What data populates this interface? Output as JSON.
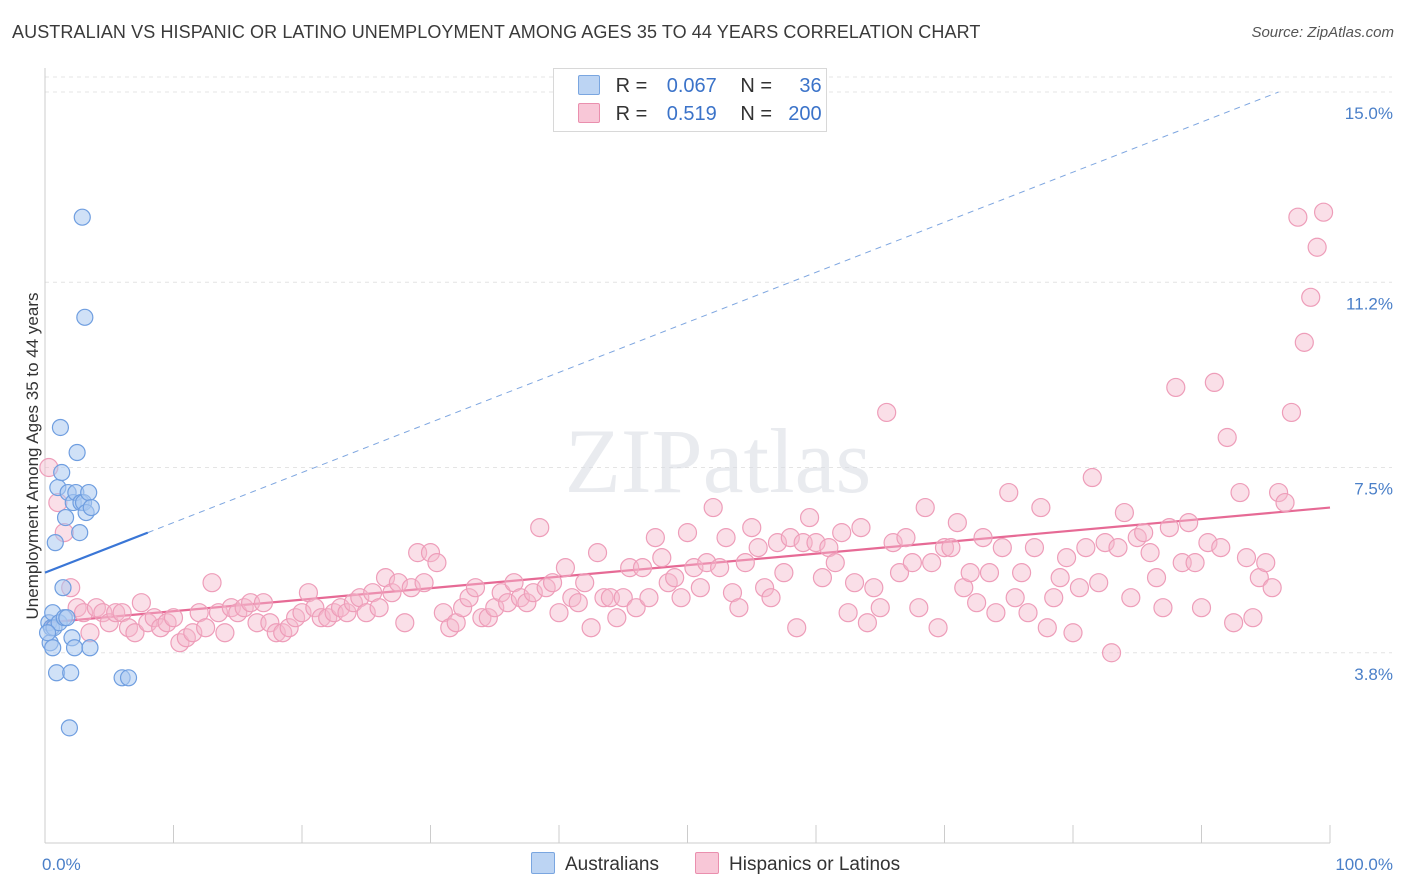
{
  "header": {
    "title": "AUSTRALIAN VS HISPANIC OR LATINO UNEMPLOYMENT AMONG AGES 35 TO 44 YEARS CORRELATION CHART",
    "source": "Source: ZipAtlas.com"
  },
  "watermark": "ZIPatlas",
  "legend": {
    "rows": [
      {
        "r_label": "R =",
        "r_value": "0.067",
        "n_label": "N =",
        "n_value": "36",
        "color": "#a9c8f0"
      },
      {
        "r_label": "R =",
        "r_value": "0.519",
        "n_label": "N =",
        "n_value": "200",
        "color": "#f5b8cc"
      }
    ]
  },
  "bottom_legend": [
    "Australians",
    "Hispanics or Latinos"
  ],
  "chart_data": {
    "type": "scatter",
    "ylabel": "Unemployment Among Ages 35 to 44 years",
    "x_ticks": [
      "0.0%",
      "100.0%"
    ],
    "y_ticks": [
      "15.0%",
      "11.2%",
      "7.5%",
      "3.8%"
    ],
    "y_tick_values": [
      15.0,
      11.2,
      7.5,
      3.8
    ],
    "xlim": [
      0,
      100
    ],
    "ylim": [
      0,
      15.6
    ],
    "grid": "horizontal dashed",
    "colors": {
      "australians": "#5b8fd9",
      "australians_fill": "#a9c8f0",
      "hispanics": "#e66a95",
      "hispanics_fill": "#f5b8cc",
      "tick": "#4a7fc8"
    },
    "series": [
      {
        "name": "Australians",
        "trend": {
          "x0": 0,
          "y0": 5.4,
          "x1": 8,
          "y1": 6.2,
          "ext_x1": 96,
          "ext_y1": 15.0
        },
        "points": [
          [
            0.3,
            4.4
          ],
          [
            0.4,
            4.0
          ],
          [
            0.5,
            4.3
          ],
          [
            0.6,
            4.6
          ],
          [
            0.7,
            4.3
          ],
          [
            0.8,
            6.0
          ],
          [
            0.9,
            3.4
          ],
          [
            1.0,
            7.1
          ],
          [
            1.1,
            4.4
          ],
          [
            1.2,
            8.3
          ],
          [
            1.3,
            7.4
          ],
          [
            1.4,
            5.1
          ],
          [
            1.5,
            4.5
          ],
          [
            1.6,
            6.5
          ],
          [
            1.7,
            4.5
          ],
          [
            1.8,
            7.0
          ],
          [
            1.9,
            2.3
          ],
          [
            2.0,
            3.4
          ],
          [
            2.1,
            4.1
          ],
          [
            2.2,
            6.8
          ],
          [
            2.3,
            3.9
          ],
          [
            2.4,
            7.0
          ],
          [
            2.5,
            7.8
          ],
          [
            2.7,
            6.2
          ],
          [
            2.8,
            6.8
          ],
          [
            2.9,
            12.5
          ],
          [
            3.0,
            6.8
          ],
          [
            3.1,
            10.5
          ],
          [
            3.2,
            6.6
          ],
          [
            3.4,
            7.0
          ],
          [
            3.5,
            3.9
          ],
          [
            3.6,
            6.7
          ],
          [
            6.0,
            3.3
          ],
          [
            6.5,
            3.3
          ],
          [
            0.2,
            4.2
          ],
          [
            0.6,
            3.9
          ]
        ]
      },
      {
        "name": "Hispanics or Latinos",
        "trend": {
          "x0": 0,
          "y0": 4.4,
          "x1": 100,
          "y1": 6.7
        },
        "points": [
          [
            0.3,
            7.5
          ],
          [
            1.0,
            6.8
          ],
          [
            1.5,
            6.2
          ],
          [
            2.0,
            5.1
          ],
          [
            2.5,
            4.7
          ],
          [
            3.0,
            4.6
          ],
          [
            3.5,
            4.2
          ],
          [
            4.0,
            4.7
          ],
          [
            4.5,
            4.6
          ],
          [
            5.0,
            4.4
          ],
          [
            5.5,
            4.6
          ],
          [
            6.0,
            4.6
          ],
          [
            6.5,
            4.3
          ],
          [
            7.0,
            4.2
          ],
          [
            7.5,
            4.8
          ],
          [
            8.0,
            4.4
          ],
          [
            8.5,
            4.5
          ],
          [
            9.0,
            4.3
          ],
          [
            9.5,
            4.4
          ],
          [
            10.0,
            4.5
          ],
          [
            10.5,
            4.0
          ],
          [
            11.0,
            4.1
          ],
          [
            11.5,
            4.2
          ],
          [
            12.0,
            4.6
          ],
          [
            12.5,
            4.3
          ],
          [
            13.0,
            5.2
          ],
          [
            13.5,
            4.6
          ],
          [
            14.0,
            4.2
          ],
          [
            14.5,
            4.7
          ],
          [
            15.0,
            4.6
          ],
          [
            15.5,
            4.7
          ],
          [
            16.0,
            4.8
          ],
          [
            16.5,
            4.4
          ],
          [
            17.0,
            4.8
          ],
          [
            17.5,
            4.4
          ],
          [
            18.0,
            4.2
          ],
          [
            18.5,
            4.2
          ],
          [
            19.0,
            4.3
          ],
          [
            19.5,
            4.5
          ],
          [
            20.0,
            4.6
          ],
          [
            20.5,
            5.0
          ],
          [
            21.0,
            4.7
          ],
          [
            21.5,
            4.5
          ],
          [
            22.0,
            4.5
          ],
          [
            22.5,
            4.6
          ],
          [
            23.0,
            4.7
          ],
          [
            23.5,
            4.6
          ],
          [
            24.0,
            4.8
          ],
          [
            24.5,
            4.9
          ],
          [
            25.0,
            4.6
          ],
          [
            25.5,
            5.0
          ],
          [
            26.0,
            4.7
          ],
          [
            26.5,
            5.3
          ],
          [
            27.0,
            5.0
          ],
          [
            27.5,
            5.2
          ],
          [
            28.0,
            4.4
          ],
          [
            28.5,
            5.1
          ],
          [
            29.0,
            5.8
          ],
          [
            29.5,
            5.2
          ],
          [
            30.0,
            5.8
          ],
          [
            30.5,
            5.6
          ],
          [
            31.0,
            4.6
          ],
          [
            31.5,
            4.3
          ],
          [
            32.0,
            4.4
          ],
          [
            32.5,
            4.7
          ],
          [
            33.0,
            4.9
          ],
          [
            33.5,
            5.1
          ],
          [
            34.0,
            4.5
          ],
          [
            34.5,
            4.5
          ],
          [
            35.0,
            4.7
          ],
          [
            35.5,
            5.0
          ],
          [
            36.0,
            4.8
          ],
          [
            36.5,
            5.2
          ],
          [
            37.0,
            4.9
          ],
          [
            37.5,
            4.8
          ],
          [
            38.0,
            5.0
          ],
          [
            38.5,
            6.3
          ],
          [
            39.0,
            5.1
          ],
          [
            39.5,
            5.2
          ],
          [
            40.0,
            4.6
          ],
          [
            40.5,
            5.5
          ],
          [
            41.0,
            4.9
          ],
          [
            41.5,
            4.8
          ],
          [
            42.0,
            5.2
          ],
          [
            42.5,
            4.3
          ],
          [
            43.0,
            5.8
          ],
          [
            43.5,
            4.9
          ],
          [
            44.0,
            4.9
          ],
          [
            44.5,
            4.5
          ],
          [
            45.0,
            4.9
          ],
          [
            45.5,
            5.5
          ],
          [
            46.0,
            4.7
          ],
          [
            46.5,
            5.5
          ],
          [
            47.0,
            4.9
          ],
          [
            47.5,
            6.1
          ],
          [
            48.0,
            5.7
          ],
          [
            48.5,
            5.2
          ],
          [
            49.0,
            5.3
          ],
          [
            49.5,
            4.9
          ],
          [
            50.0,
            6.2
          ],
          [
            50.5,
            5.5
          ],
          [
            51.0,
            5.1
          ],
          [
            51.5,
            5.6
          ],
          [
            52.0,
            6.7
          ],
          [
            52.5,
            5.5
          ],
          [
            53.0,
            6.1
          ],
          [
            53.5,
            5.0
          ],
          [
            54.0,
            4.7
          ],
          [
            54.5,
            5.6
          ],
          [
            55.0,
            6.3
          ],
          [
            55.5,
            5.9
          ],
          [
            56.0,
            5.1
          ],
          [
            56.5,
            4.9
          ],
          [
            57.0,
            6.0
          ],
          [
            57.5,
            5.4
          ],
          [
            58.0,
            6.1
          ],
          [
            58.5,
            4.3
          ],
          [
            59.0,
            6.0
          ],
          [
            59.5,
            6.5
          ],
          [
            60.0,
            6.0
          ],
          [
            60.5,
            5.3
          ],
          [
            61.0,
            5.9
          ],
          [
            61.5,
            5.6
          ],
          [
            62.0,
            6.2
          ],
          [
            62.5,
            4.6
          ],
          [
            63.0,
            5.2
          ],
          [
            63.5,
            6.3
          ],
          [
            64.0,
            4.4
          ],
          [
            64.5,
            5.1
          ],
          [
            65.0,
            4.7
          ],
          [
            65.5,
            8.6
          ],
          [
            66.0,
            6.0
          ],
          [
            66.5,
            5.4
          ],
          [
            67.0,
            6.1
          ],
          [
            67.5,
            5.6
          ],
          [
            68.0,
            4.7
          ],
          [
            68.5,
            6.7
          ],
          [
            69.0,
            5.6
          ],
          [
            69.5,
            4.3
          ],
          [
            70.0,
            5.9
          ],
          [
            70.5,
            5.9
          ],
          [
            71.0,
            6.4
          ],
          [
            71.5,
            5.1
          ],
          [
            72.0,
            5.4
          ],
          [
            72.5,
            4.8
          ],
          [
            73.0,
            6.1
          ],
          [
            73.5,
            5.4
          ],
          [
            74.0,
            4.6
          ],
          [
            74.5,
            5.9
          ],
          [
            75.0,
            7.0
          ],
          [
            75.5,
            4.9
          ],
          [
            76.0,
            5.4
          ],
          [
            76.5,
            4.6
          ],
          [
            77.0,
            5.9
          ],
          [
            77.5,
            6.7
          ],
          [
            78.0,
            4.3
          ],
          [
            78.5,
            4.9
          ],
          [
            79.0,
            5.3
          ],
          [
            79.5,
            5.7
          ],
          [
            80.0,
            4.2
          ],
          [
            80.5,
            5.1
          ],
          [
            81.0,
            5.9
          ],
          [
            81.5,
            7.3
          ],
          [
            82.0,
            5.2
          ],
          [
            82.5,
            6.0
          ],
          [
            83.0,
            3.8
          ],
          [
            83.5,
            5.9
          ],
          [
            84.0,
            6.6
          ],
          [
            84.5,
            4.9
          ],
          [
            85.0,
            6.1
          ],
          [
            85.5,
            6.2
          ],
          [
            86.0,
            5.8
          ],
          [
            86.5,
            5.3
          ],
          [
            87.0,
            4.7
          ],
          [
            87.5,
            6.3
          ],
          [
            88.0,
            9.1
          ],
          [
            88.5,
            5.6
          ],
          [
            89.0,
            6.4
          ],
          [
            89.5,
            5.6
          ],
          [
            90.0,
            4.7
          ],
          [
            90.5,
            6.0
          ],
          [
            91.0,
            9.2
          ],
          [
            91.5,
            5.9
          ],
          [
            92.0,
            8.1
          ],
          [
            92.5,
            4.4
          ],
          [
            93.0,
            7.0
          ],
          [
            93.5,
            5.7
          ],
          [
            94.0,
            4.5
          ],
          [
            94.5,
            5.3
          ],
          [
            95.0,
            5.6
          ],
          [
            95.5,
            5.1
          ],
          [
            96.0,
            7.0
          ],
          [
            96.5,
            6.8
          ],
          [
            97.0,
            8.6
          ],
          [
            97.5,
            12.5
          ],
          [
            98.0,
            10.0
          ],
          [
            98.5,
            10.9
          ],
          [
            99.0,
            11.9
          ],
          [
            99.5,
            12.6
          ]
        ]
      }
    ]
  }
}
